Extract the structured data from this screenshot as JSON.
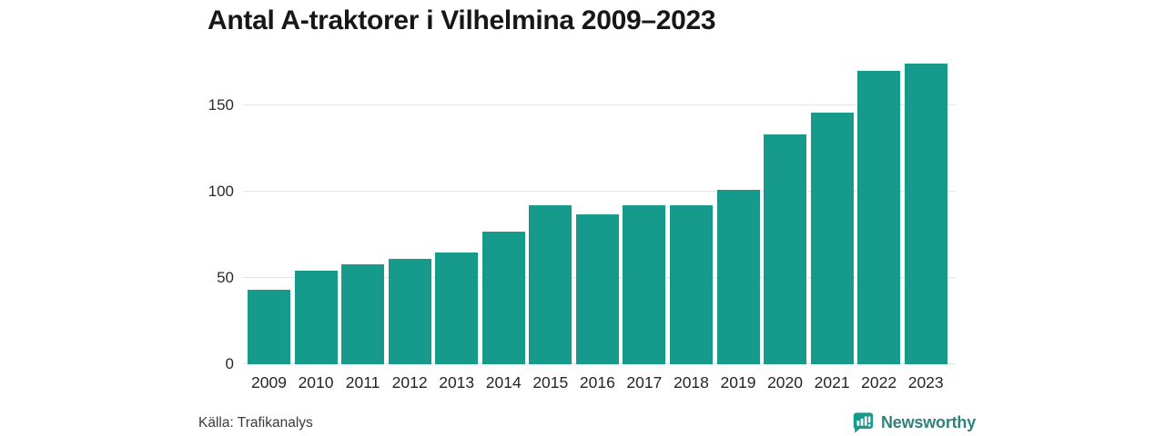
{
  "chart_data": {
    "type": "bar",
    "title": "Antal A-traktorer i Vilhelmina 2009–2023",
    "categories": [
      "2009",
      "2010",
      "2011",
      "2012",
      "2013",
      "2014",
      "2015",
      "2016",
      "2017",
      "2018",
      "2019",
      "2020",
      "2021",
      "2022",
      "2023"
    ],
    "values": [
      43,
      54,
      58,
      61,
      65,
      77,
      92,
      87,
      92,
      92,
      101,
      133,
      146,
      170,
      174
    ],
    "xlabel": "",
    "ylabel": "",
    "ylim": [
      0,
      180
    ],
    "yticks": [
      0,
      50,
      100,
      150
    ],
    "grid": true,
    "legend": false,
    "bar_color": "#169a8b"
  },
  "source": "Källa: Trafikanalys",
  "brand": {
    "name": "Newsworthy",
    "icon": "newsworthy-bar-chart-bubble-icon",
    "text_color": "#2f827b",
    "icon_color": "#169a8b"
  },
  "colors": {
    "background": "#ffffff",
    "title_text": "#171717",
    "axis_text": "#2b2b2b",
    "gridline": "#e4e4e4"
  }
}
